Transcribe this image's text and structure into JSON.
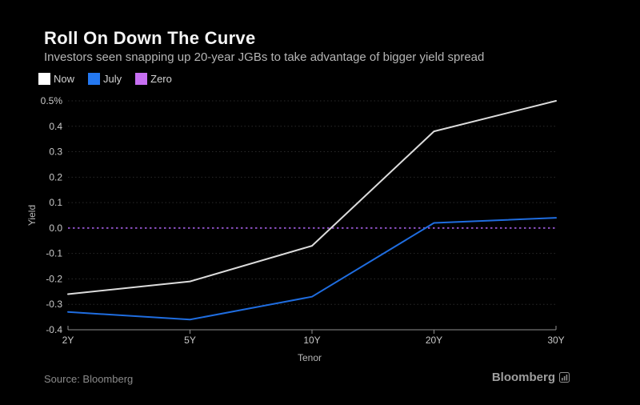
{
  "header": {
    "title": "Roll On Down The Curve",
    "subtitle": "Investors seen snapping up 20-year JGBs to take advantage of bigger yield spread"
  },
  "legend": [
    {
      "label": "Now",
      "color": "#ffffff"
    },
    {
      "label": "July",
      "color": "#2478f0"
    },
    {
      "label": "Zero",
      "color": "#c76ff2"
    }
  ],
  "footer": {
    "source": "Source: Bloomberg",
    "brand": "Bloomberg",
    "brand_icon": "bloomberg-terminal-chart-icon"
  },
  "chart_data": {
    "type": "line",
    "categories": [
      "2Y",
      "5Y",
      "10Y",
      "20Y",
      "30Y"
    ],
    "series": [
      {
        "name": "Now",
        "color": "#dcdcdc",
        "style": "solid",
        "values": [
          -0.26,
          -0.21,
          -0.07,
          0.38,
          0.5
        ]
      },
      {
        "name": "July",
        "color": "#1f6de0",
        "style": "solid",
        "values": [
          -0.33,
          -0.36,
          -0.27,
          0.02,
          0.04
        ]
      },
      {
        "name": "Zero",
        "color": "#8a4fc0",
        "style": "dotted",
        "values": [
          0,
          0,
          0,
          0,
          0
        ]
      }
    ],
    "title": "Roll On Down The Curve",
    "subtitle": "Investors seen snapping up 20-year JGBs to take advantage of bigger yield spread",
    "xlabel": "Tenor",
    "ylabel": "Yield",
    "ylim": [
      -0.4,
      0.5
    ],
    "ytick_step": 0.1,
    "ytick_labels": [
      "0.5%",
      "0.4",
      "0.3",
      "0.2",
      "0.1",
      "0.0",
      "-0.1",
      "-0.2",
      "-0.3",
      "-0.4"
    ],
    "grid": "dotted horizontal gridlines",
    "legend_position": "top-left",
    "axis_color": "#8f8f8f",
    "grid_color": "#2a2a2a",
    "tick_label_color": "#c9c9c9",
    "axis_title_color": "#b9b9b9"
  }
}
